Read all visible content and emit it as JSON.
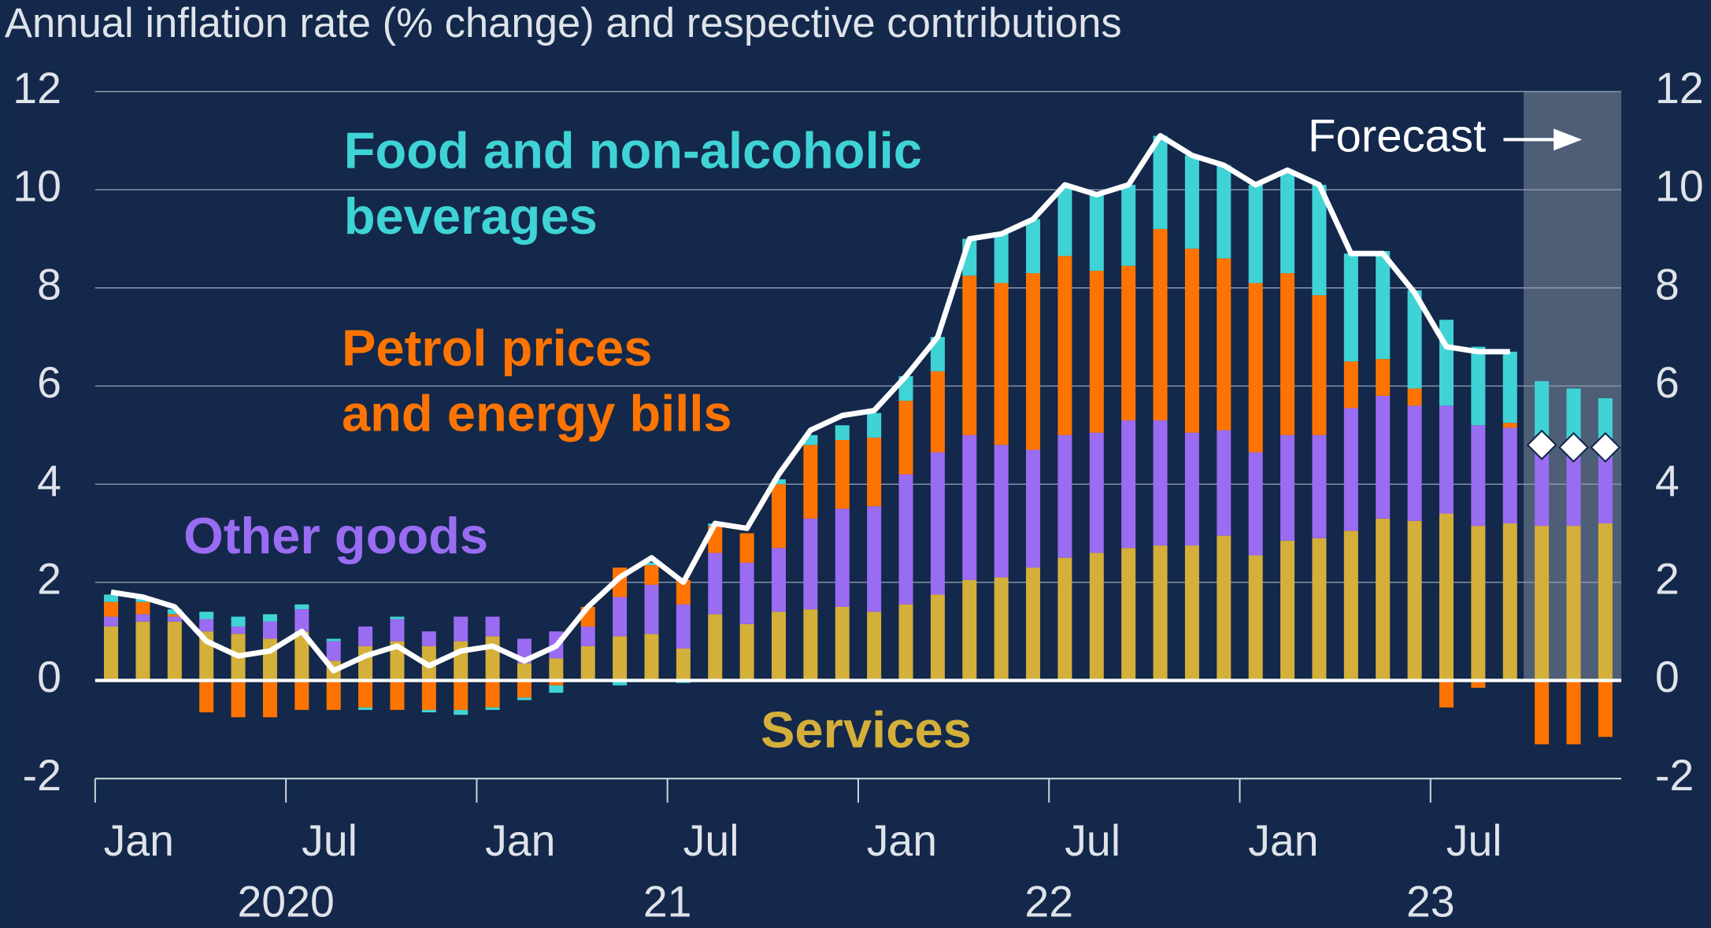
{
  "chart_data": {
    "type": "bar",
    "title": "Annual inflation rate (% change) and respective contributions",
    "categories": [
      "Jan",
      null,
      null,
      null,
      null,
      null,
      "Jul",
      null,
      null,
      null,
      null,
      null,
      "Jan",
      null,
      null,
      null,
      null,
      null,
      "Jul",
      null,
      null,
      null,
      null,
      null,
      "Jan",
      null,
      null,
      null,
      null,
      null,
      "Jul",
      null,
      null,
      null,
      null,
      null,
      "Jan",
      null,
      null,
      null,
      null,
      null,
      "Jul",
      null,
      null,
      null,
      null,
      null
    ],
    "year_labels": [
      "2020",
      "21",
      "22",
      "23"
    ],
    "ylim": [
      -2,
      12
    ],
    "yticks": [
      -2,
      0,
      2,
      4,
      6,
      8,
      10,
      12
    ],
    "grid": true,
    "forecast_label": "Forecast",
    "series": [
      {
        "name": "Services",
        "color": "#d4af3a",
        "values": [
          1.1,
          1.2,
          1.2,
          1.0,
          0.95,
          0.85,
          1.0,
          0.4,
          0.7,
          0.8,
          0.7,
          0.8,
          0.9,
          0.35,
          0.45,
          0.7,
          0.9,
          0.95,
          0.65,
          1.35,
          1.15,
          1.4,
          1.45,
          1.5,
          1.4,
          1.55,
          1.75,
          2.05,
          2.1,
          2.3,
          2.5,
          2.6,
          2.7,
          2.75,
          2.75,
          2.95,
          2.55,
          2.85,
          2.9,
          3.05,
          3.3,
          3.25,
          3.4,
          3.15,
          3.2,
          3.15,
          3.15,
          3.2
        ]
      },
      {
        "name": "Other goods",
        "color": "#9a6cf2",
        "values": [
          0.2,
          0.15,
          0.1,
          0.25,
          0.15,
          0.35,
          0.45,
          0.4,
          0.4,
          0.45,
          0.3,
          0.5,
          0.4,
          0.5,
          0.55,
          0.4,
          0.8,
          1.0,
          0.9,
          1.25,
          1.25,
          1.3,
          1.85,
          2.0,
          2.15,
          2.65,
          2.9,
          2.95,
          2.7,
          2.4,
          2.5,
          2.45,
          2.6,
          2.55,
          2.3,
          2.15,
          2.1,
          2.15,
          2.1,
          2.5,
          2.5,
          2.35,
          2.2,
          2.05,
          1.95,
          1.6,
          1.45,
          1.35
        ]
      },
      {
        "name": "Petrol prices and energy bills",
        "color": "#ff7400",
        "values": [
          0.3,
          0.25,
          0.05,
          -0.65,
          -0.75,
          -0.75,
          -0.6,
          -0.6,
          -0.55,
          -0.6,
          -0.6,
          -0.6,
          -0.55,
          -0.35,
          -0.1,
          0.4,
          0.6,
          0.4,
          0.5,
          0.55,
          0.6,
          1.3,
          1.5,
          1.4,
          1.4,
          1.5,
          1.65,
          3.25,
          3.3,
          3.6,
          3.65,
          3.3,
          3.15,
          3.9,
          3.75,
          3.5,
          3.45,
          3.3,
          2.85,
          0.95,
          0.75,
          0.35,
          -0.55,
          -0.15,
          0.1,
          -1.3,
          -1.3,
          -1.15
        ]
      },
      {
        "name": "Food and non-alcoholic beverages",
        "color": "#3fd3d6",
        "values": [
          0.15,
          0.1,
          0.1,
          0.15,
          0.2,
          0.15,
          0.1,
          0.05,
          -0.05,
          0.05,
          -0.05,
          -0.1,
          -0.05,
          -0.05,
          -0.15,
          0,
          -0.1,
          0.05,
          -0.05,
          0.05,
          0,
          0.1,
          0.2,
          0.3,
          0.5,
          0.5,
          0.7,
          0.75,
          1.0,
          1.1,
          1.4,
          1.55,
          1.65,
          1.9,
          1.9,
          1.9,
          2.0,
          2.1,
          2.25,
          2.2,
          2.2,
          2.0,
          1.75,
          1.6,
          1.45,
          1.35,
          1.35,
          1.2
        ]
      }
    ],
    "headline": {
      "color": "#ffffff",
      "values": [
        1.8,
        1.7,
        1.5,
        0.8,
        0.5,
        0.6,
        1.0,
        0.2,
        0.5,
        0.7,
        0.3,
        0.6,
        0.7,
        0.4,
        0.7,
        1.5,
        2.1,
        2.5,
        2.0,
        3.2,
        3.1,
        4.2,
        5.1,
        5.4,
        5.5,
        6.2,
        7.0,
        9.0,
        9.1,
        9.4,
        10.1,
        9.9,
        10.1,
        11.1,
        10.7,
        10.5,
        10.1,
        10.4,
        10.1,
        8.7,
        8.7,
        7.9,
        6.8,
        6.7,
        6.7,
        null,
        null,
        null
      ]
    },
    "forecast_points": {
      "values": [
        null,
        null,
        null,
        null,
        null,
        null,
        null,
        null,
        null,
        null,
        null,
        null,
        null,
        null,
        null,
        null,
        null,
        null,
        null,
        null,
        null,
        null,
        null,
        null,
        null,
        null,
        null,
        null,
        null,
        null,
        null,
        null,
        null,
        null,
        null,
        null,
        null,
        null,
        null,
        null,
        null,
        null,
        null,
        null,
        null,
        4.8,
        4.75,
        4.75
      ]
    }
  }
}
